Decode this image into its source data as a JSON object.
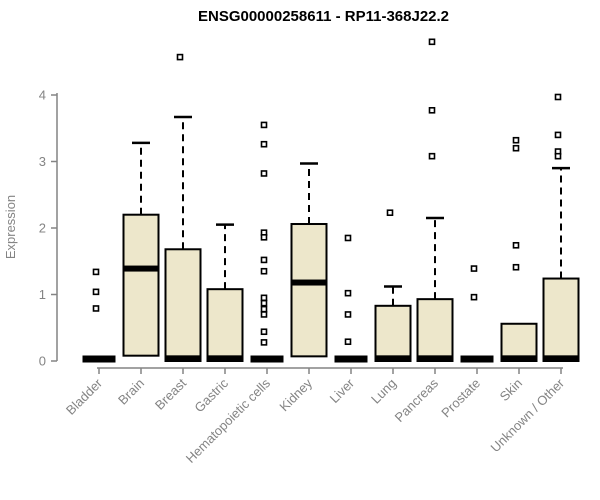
{
  "title": "ENSG00000258611 - RP11-368J22.2",
  "colors": {
    "box_fill": "#EDE7CB",
    "box_stroke": "#000000",
    "median": "#000000",
    "whisker": "#000000",
    "outlier_stroke": "#000000",
    "outlier_fill": "#ffffff",
    "axis": "#848484",
    "tick_label": "#848484",
    "title": "#000000",
    "background": "#ffffff"
  },
  "chart_data": {
    "type": "boxplot",
    "title": "ENSG00000258611 - RP11-368J22.2",
    "xlabel": "",
    "ylabel": "Expression",
    "ylim": [
      0,
      4.9
    ],
    "yticks": [
      0,
      1,
      2,
      3,
      4
    ],
    "grid": "off",
    "legend": "none",
    "x_tick_rotation_deg": 45,
    "categories": [
      "Bladder",
      "Brain",
      "Breast",
      "Gastric",
      "Hematopoietic cells",
      "Kidney",
      "Liver",
      "Lung",
      "Pancreas",
      "Prostate",
      "Skin",
      "Unknown / Other"
    ],
    "series": [
      {
        "name": "Bladder",
        "collapsed": true,
        "whisker_low": 0,
        "q1": 0,
        "median": 0.03,
        "q3": 0.05,
        "whisker_high": 0.05,
        "outliers": [
          1.34,
          1.04,
          0.79
        ]
      },
      {
        "name": "Brain",
        "collapsed": false,
        "whisker_low": 0.08,
        "q1": 0.08,
        "median": 1.39,
        "q3": 2.2,
        "whisker_high": 3.28,
        "outliers": []
      },
      {
        "name": "Breast",
        "collapsed": false,
        "whisker_low": 0,
        "q1": 0,
        "median": 0.04,
        "q3": 1.68,
        "whisker_high": 3.67,
        "outliers": [
          4.57
        ]
      },
      {
        "name": "Gastric",
        "collapsed": false,
        "whisker_low": 0,
        "q1": 0,
        "median": 0.04,
        "q3": 1.08,
        "whisker_high": 2.05,
        "outliers": []
      },
      {
        "name": "Hematopoietic cells",
        "collapsed": true,
        "whisker_low": 0,
        "q1": 0,
        "median": 0.03,
        "q3": 0.05,
        "whisker_high": 0.05,
        "outliers": [
          3.55,
          3.26,
          2.82,
          1.93,
          1.86,
          1.52,
          1.35,
          0.95,
          0.87,
          0.78,
          0.7,
          0.44,
          0.28
        ]
      },
      {
        "name": "Kidney",
        "collapsed": false,
        "whisker_low": 0.07,
        "q1": 0.07,
        "median": 1.18,
        "q3": 2.06,
        "whisker_high": 2.97,
        "outliers": []
      },
      {
        "name": "Liver",
        "collapsed": true,
        "whisker_low": 0,
        "q1": 0,
        "median": 0.03,
        "q3": 0.05,
        "whisker_high": 0.05,
        "outliers": [
          1.85,
          1.02,
          0.7,
          0.29
        ]
      },
      {
        "name": "Lung",
        "collapsed": false,
        "whisker_low": 0,
        "q1": 0,
        "median": 0.04,
        "q3": 0.83,
        "whisker_high": 1.12,
        "outliers": [
          2.23
        ]
      },
      {
        "name": "Pancreas",
        "collapsed": false,
        "whisker_low": 0,
        "q1": 0,
        "median": 0.04,
        "q3": 0.93,
        "whisker_high": 2.15,
        "outliers": [
          4.8,
          3.77,
          3.08
        ]
      },
      {
        "name": "Prostate",
        "collapsed": true,
        "whisker_low": 0,
        "q1": 0,
        "median": 0.03,
        "q3": 0.05,
        "whisker_high": 0.05,
        "outliers": [
          1.39,
          0.96
        ]
      },
      {
        "name": "Skin",
        "collapsed": false,
        "whisker_low": 0,
        "q1": 0,
        "median": 0.04,
        "q3": 0.56,
        "whisker_high": 0.64,
        "outliers": [
          3.32,
          3.2,
          1.74,
          1.41
        ]
      },
      {
        "name": "Unknown / Other",
        "collapsed": false,
        "whisker_low": 0,
        "q1": 0,
        "median": 0.04,
        "q3": 1.24,
        "whisker_high": 2.9,
        "outliers": [
          3.97,
          3.4,
          3.15,
          3.08
        ]
      }
    ]
  }
}
